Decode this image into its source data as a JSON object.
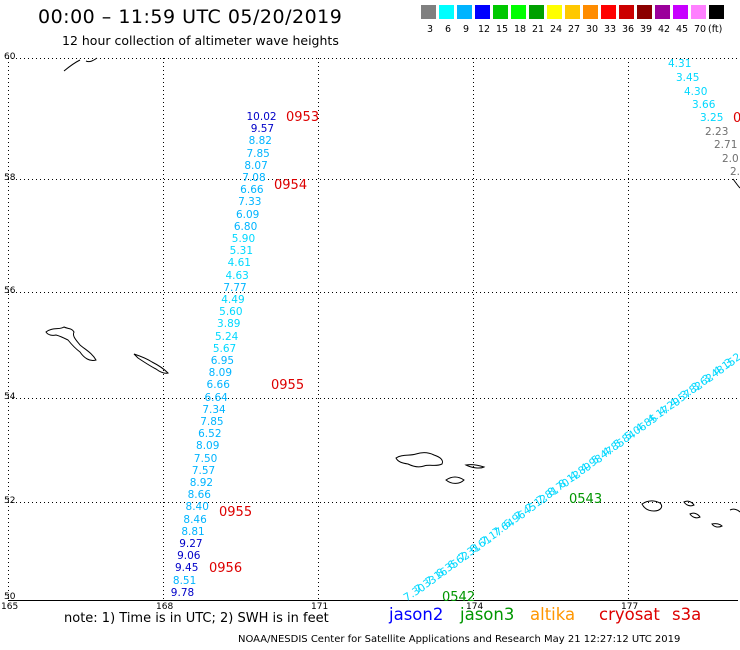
{
  "title": "00:00 – 11:59 UTC 05/20/2019",
  "subtitle": "12 hour collection of altimeter wave heights",
  "legend": {
    "colors": [
      "#808080",
      "#00ffff",
      "#00b4ff",
      "#0000ff",
      "#00c800",
      "#00ff00",
      "#00a000",
      "#ffff00",
      "#ffc800",
      "#ff8c00",
      "#ff0000",
      "#cc0000",
      "#8b0000",
      "#9b009b",
      "#c800ff",
      "#ff80ff",
      "#000000"
    ],
    "labels": [
      "3",
      "6",
      "9",
      "12",
      "15",
      "18",
      "21",
      "24",
      "27",
      "30",
      "33",
      "36",
      "39",
      "42",
      "45",
      "70",
      "(ft)"
    ]
  },
  "latitudes": [
    "60",
    "58",
    "56",
    "54",
    "52",
    "50"
  ],
  "longitudes": [
    "165",
    "168",
    "171",
    "174",
    "177"
  ],
  "tracks": [
    {
      "values": [
        {
          "v": "10.02",
          "c": "#0000c8"
        },
        {
          "v": "9.57",
          "c": "#0000c8"
        },
        {
          "v": "8.82",
          "c": "#00b4ff"
        },
        {
          "v": "7.85",
          "c": "#00b4ff"
        },
        {
          "v": "8.07",
          "c": "#00b4ff"
        },
        {
          "v": "7.08",
          "c": "#00b4ff"
        },
        {
          "v": "6.66",
          "c": "#00b4ff"
        },
        {
          "v": "7.33",
          "c": "#00b4ff"
        },
        {
          "v": "6.09",
          "c": "#00b4ff"
        },
        {
          "v": "6.80",
          "c": "#00b4ff"
        },
        {
          "v": "5.90",
          "c": "#00d8ff"
        },
        {
          "v": "5.31",
          "c": "#00d8ff"
        },
        {
          "v": "4.61",
          "c": "#00d8ff"
        },
        {
          "v": "4.63",
          "c": "#00d8ff"
        },
        {
          "v": "7.77",
          "c": "#00b4ff"
        },
        {
          "v": "4.49",
          "c": "#00d8ff"
        },
        {
          "v": "5.60",
          "c": "#00d8ff"
        },
        {
          "v": "3.89",
          "c": "#00d8ff"
        },
        {
          "v": "5.24",
          "c": "#00d8ff"
        },
        {
          "v": "5.67",
          "c": "#00d8ff"
        },
        {
          "v": "6.95",
          "c": "#00b4ff"
        },
        {
          "v": "8.09",
          "c": "#00b4ff"
        },
        {
          "v": "6.66",
          "c": "#00b4ff"
        },
        {
          "v": "6.64",
          "c": "#00b4ff"
        },
        {
          "v": "7.34",
          "c": "#00b4ff"
        },
        {
          "v": "7.85",
          "c": "#00b4ff"
        },
        {
          "v": "6.52",
          "c": "#00b4ff"
        },
        {
          "v": "8.09",
          "c": "#00b4ff"
        },
        {
          "v": "7.50",
          "c": "#00b4ff"
        },
        {
          "v": "7.57",
          "c": "#00b4ff"
        },
        {
          "v": "8.92",
          "c": "#00b4ff"
        },
        {
          "v": "8.66",
          "c": "#00b4ff"
        },
        {
          "v": "8.40",
          "c": "#00b4ff"
        },
        {
          "v": "8.46",
          "c": "#00b4ff"
        },
        {
          "v": "8.81",
          "c": "#00b4ff"
        },
        {
          "v": "9.27",
          "c": "#0000c8"
        },
        {
          "v": "9.06",
          "c": "#0000c8"
        },
        {
          "v": "9.45",
          "c": "#0000c8"
        },
        {
          "v": "8.51",
          "c": "#00b4ff"
        },
        {
          "v": "9.78",
          "c": "#0000c8"
        }
      ],
      "times": [
        "0953",
        "0954",
        "0955",
        "0955",
        "0956"
      ]
    },
    {
      "values": [
        "4.31",
        "3.45",
        "4.30",
        "3.66",
        "3.25",
        "2.23",
        "2.71",
        "2.0",
        "2."
      ],
      "times": [
        "0"
      ]
    },
    {
      "values": [
        "7.30",
        "7.33",
        "7.16",
        "8.35",
        "6.62",
        "7.31",
        "6.61",
        "7.17",
        "7.64",
        "6.96",
        "7.45",
        "7.12",
        "7.81",
        "8.70",
        "8.12",
        "4.89",
        "4.98",
        "5.47",
        "4.85",
        "5.84",
        "5.06",
        "4.85",
        "4.17",
        "4.29",
        "4.57",
        "3.82",
        "3.62",
        "3.48",
        "4.15",
        "3.2"
      ],
      "times": [
        "0542",
        "0543"
      ]
    }
  ],
  "note": "note: 1) Time is in UTC; 2) SWH is in feet",
  "satellites": [
    {
      "name": "jason2",
      "color": "#0000ff"
    },
    {
      "name": "jason3",
      "color": "#009600"
    },
    {
      "name": "altika",
      "color": "#ff9600"
    },
    {
      "name": "cryosat",
      "color": "#dd0000"
    },
    {
      "name": "s3a",
      "color": "#dd0000"
    }
  ],
  "footer": "NOAA/NESDIS Center for Satellite Applications and Research    May 21 12:27:12 UTC 2019"
}
